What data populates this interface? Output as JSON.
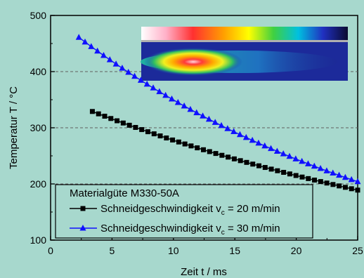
{
  "chart_data": {
    "type": "line",
    "xlabel": "Zeit t / ms",
    "ylabel": "Temperatur T / °C",
    "xlim": [
      0,
      25
    ],
    "ylim": [
      100,
      500
    ],
    "xticks": [
      0,
      5,
      10,
      15,
      20,
      25
    ],
    "yticks": [
      100,
      200,
      300,
      400,
      500
    ],
    "grid": "horizontal dashed at 200, 300, 400",
    "legend": {
      "title": "Materialgüte M330-50A",
      "placement": "bottom-left"
    },
    "series": [
      {
        "name_prefix": "Schneidgeschwindigkeit v",
        "name_sub": "c",
        "name_suffix": " = 20 m/min",
        "color": "#000000",
        "marker": "square",
        "x_start": 3.4,
        "x_end": 25.0,
        "step": 0.5,
        "y_start": 329,
        "y_end": 189
      },
      {
        "name_prefix": "Schneidgeschwindigkeit v",
        "name_sub": "c",
        "name_suffix": " = 30 m/min",
        "color": "#1010ff",
        "marker": "triangle",
        "x_start": 2.3,
        "x_end": 25.0,
        "step": 0.5,
        "y_start": 461,
        "y_end": 204
      }
    ],
    "inset": "thermal camera image with color scale"
  }
}
